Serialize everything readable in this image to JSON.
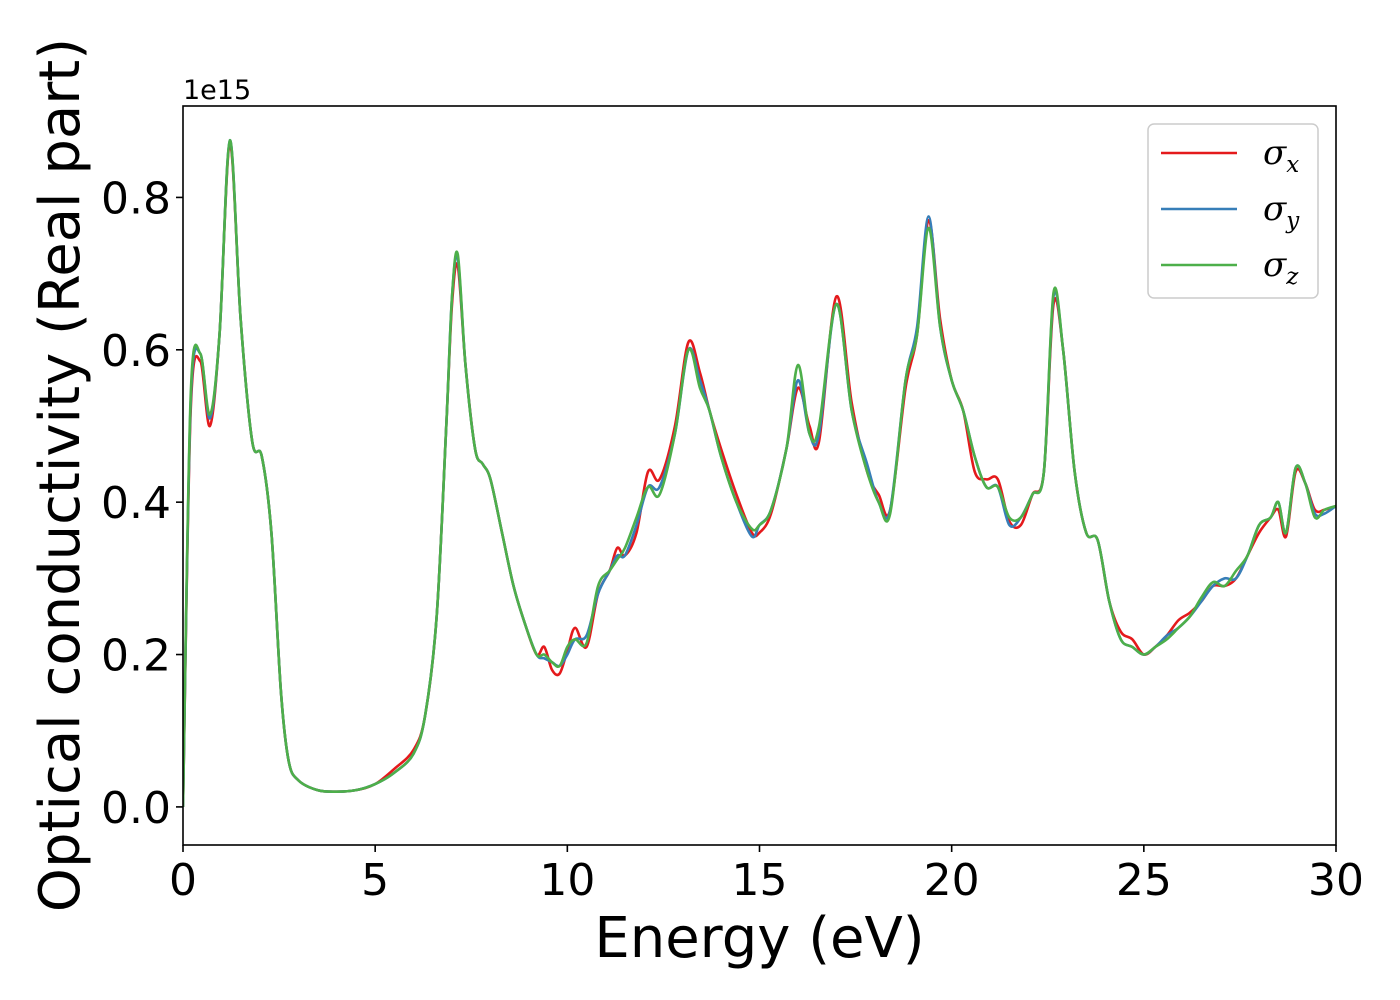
{
  "chart_data": {
    "type": "line",
    "title": "",
    "xlabel": "Energy (eV)",
    "ylabel": "Optical conductivity (Real part)",
    "y_offset_label": "1e15",
    "xlim": [
      0,
      30
    ],
    "ylim": [
      -0.05,
      0.92
    ],
    "xticks": [
      0,
      5,
      10,
      15,
      20,
      25,
      30
    ],
    "yticks": [
      0.0,
      0.2,
      0.4,
      0.6,
      0.8
    ],
    "grid": false,
    "legend_position": "top-right",
    "series": [
      {
        "name": "σx",
        "symbol": "σ",
        "subscript": "x",
        "color": "#e41a1c",
        "x": [
          0,
          0.2,
          0.45,
          0.7,
          0.95,
          1.22,
          1.5,
          1.8,
          2.05,
          2.3,
          2.55,
          2.75,
          3.0,
          3.5,
          4.0,
          4.5,
          5.0,
          5.5,
          6.0,
          6.3,
          6.6,
          6.85,
          7.0,
          7.15,
          7.35,
          7.6,
          7.8,
          8.0,
          8.3,
          8.6,
          8.9,
          9.2,
          9.4,
          9.6,
          9.8,
          10.0,
          10.2,
          10.5,
          10.8,
          11.1,
          11.3,
          11.5,
          11.8,
          12.1,
          12.4,
          12.8,
          13.15,
          13.45,
          13.7,
          14.0,
          14.4,
          14.8,
          15.0,
          15.3,
          15.7,
          16.0,
          16.3,
          16.55,
          17.0,
          17.4,
          17.8,
          18.1,
          18.4,
          18.8,
          19.1,
          19.4,
          19.7,
          20.0,
          20.3,
          20.6,
          20.9,
          21.2,
          21.5,
          21.8,
          22.1,
          22.4,
          22.65,
          22.9,
          23.2,
          23.5,
          23.8,
          24.1,
          24.4,
          24.7,
          25.0,
          25.3,
          25.6,
          25.9,
          26.2,
          26.5,
          26.8,
          27.1,
          27.4,
          27.7,
          28.0,
          28.3,
          28.5,
          28.7,
          28.95,
          29.2,
          29.45,
          29.7,
          30.0
        ],
        "y": [
          0.0,
          0.52,
          0.585,
          0.5,
          0.62,
          0.87,
          0.64,
          0.48,
          0.46,
          0.36,
          0.15,
          0.06,
          0.035,
          0.022,
          0.02,
          0.022,
          0.03,
          0.05,
          0.075,
          0.12,
          0.25,
          0.5,
          0.66,
          0.71,
          0.58,
          0.47,
          0.45,
          0.43,
          0.36,
          0.29,
          0.24,
          0.2,
          0.21,
          0.18,
          0.175,
          0.205,
          0.235,
          0.21,
          0.28,
          0.31,
          0.34,
          0.33,
          0.36,
          0.44,
          0.43,
          0.5,
          0.61,
          0.57,
          0.52,
          0.47,
          0.41,
          0.36,
          0.36,
          0.385,
          0.47,
          0.55,
          0.5,
          0.48,
          0.67,
          0.53,
          0.44,
          0.41,
          0.39,
          0.55,
          0.62,
          0.77,
          0.64,
          0.56,
          0.52,
          0.44,
          0.43,
          0.43,
          0.375,
          0.37,
          0.41,
          0.44,
          0.66,
          0.6,
          0.44,
          0.36,
          0.35,
          0.27,
          0.23,
          0.22,
          0.2,
          0.21,
          0.225,
          0.245,
          0.255,
          0.27,
          0.29,
          0.29,
          0.3,
          0.33,
          0.36,
          0.38,
          0.39,
          0.355,
          0.44,
          0.425,
          0.39,
          0.39,
          0.395
        ]
      },
      {
        "name": "σy",
        "symbol": "σ",
        "subscript": "y",
        "color": "#377eb8",
        "x": [
          0,
          0.2,
          0.45,
          0.7,
          0.95,
          1.22,
          1.5,
          1.8,
          2.05,
          2.3,
          2.55,
          2.75,
          3.0,
          3.5,
          4.0,
          4.5,
          5.0,
          5.5,
          6.0,
          6.3,
          6.6,
          6.85,
          7.0,
          7.15,
          7.35,
          7.6,
          7.8,
          8.0,
          8.3,
          8.6,
          8.9,
          9.2,
          9.4,
          9.6,
          9.8,
          10.0,
          10.2,
          10.5,
          10.8,
          11.1,
          11.3,
          11.5,
          11.8,
          12.1,
          12.4,
          12.8,
          13.15,
          13.45,
          13.7,
          14.0,
          14.4,
          14.8,
          15.0,
          15.3,
          15.7,
          16.0,
          16.3,
          16.55,
          17.0,
          17.4,
          17.8,
          18.1,
          18.4,
          18.8,
          19.1,
          19.4,
          19.7,
          20.0,
          20.3,
          20.6,
          20.9,
          21.2,
          21.5,
          21.8,
          22.1,
          22.4,
          22.65,
          22.9,
          23.2,
          23.5,
          23.8,
          24.1,
          24.4,
          24.7,
          25.0,
          25.3,
          25.6,
          25.9,
          26.2,
          26.5,
          26.8,
          27.1,
          27.4,
          27.7,
          28.0,
          28.3,
          28.5,
          28.7,
          28.95,
          29.2,
          29.45,
          29.7,
          30.0
        ],
        "y": [
          0.0,
          0.53,
          0.595,
          0.51,
          0.62,
          0.875,
          0.64,
          0.48,
          0.46,
          0.36,
          0.15,
          0.06,
          0.035,
          0.022,
          0.02,
          0.022,
          0.03,
          0.045,
          0.07,
          0.12,
          0.25,
          0.5,
          0.67,
          0.72,
          0.58,
          0.47,
          0.45,
          0.43,
          0.36,
          0.29,
          0.24,
          0.2,
          0.195,
          0.19,
          0.185,
          0.2,
          0.22,
          0.225,
          0.28,
          0.31,
          0.33,
          0.33,
          0.37,
          0.42,
          0.42,
          0.49,
          0.6,
          0.56,
          0.52,
          0.46,
          0.4,
          0.355,
          0.37,
          0.39,
          0.47,
          0.56,
          0.49,
          0.49,
          0.66,
          0.52,
          0.45,
          0.4,
          0.39,
          0.56,
          0.63,
          0.775,
          0.63,
          0.56,
          0.52,
          0.46,
          0.42,
          0.42,
          0.37,
          0.38,
          0.41,
          0.44,
          0.67,
          0.6,
          0.44,
          0.36,
          0.35,
          0.27,
          0.22,
          0.21,
          0.2,
          0.21,
          0.225,
          0.235,
          0.25,
          0.27,
          0.29,
          0.3,
          0.3,
          0.33,
          0.37,
          0.38,
          0.4,
          0.36,
          0.445,
          0.425,
          0.385,
          0.385,
          0.395
        ]
      },
      {
        "name": "σz",
        "symbol": "σ",
        "subscript": "z",
        "color": "#4daf4a",
        "x": [
          0,
          0.2,
          0.45,
          0.7,
          0.95,
          1.22,
          1.5,
          1.8,
          2.05,
          2.3,
          2.55,
          2.75,
          3.0,
          3.5,
          4.0,
          4.5,
          5.0,
          5.5,
          6.0,
          6.3,
          6.6,
          6.85,
          7.0,
          7.15,
          7.35,
          7.6,
          7.8,
          8.0,
          8.3,
          8.6,
          8.9,
          9.2,
          9.4,
          9.6,
          9.8,
          10.0,
          10.2,
          10.5,
          10.8,
          11.1,
          11.3,
          11.5,
          11.8,
          12.1,
          12.4,
          12.8,
          13.15,
          13.45,
          13.7,
          14.0,
          14.4,
          14.8,
          15.0,
          15.3,
          15.7,
          16.0,
          16.3,
          16.55,
          17.0,
          17.4,
          17.8,
          18.1,
          18.4,
          18.8,
          19.1,
          19.4,
          19.7,
          20.0,
          20.3,
          20.6,
          20.9,
          21.2,
          21.5,
          21.8,
          22.1,
          22.4,
          22.65,
          22.9,
          23.2,
          23.5,
          23.8,
          24.1,
          24.4,
          24.7,
          25.0,
          25.3,
          25.6,
          25.9,
          26.2,
          26.5,
          26.8,
          27.1,
          27.4,
          27.7,
          28.0,
          28.3,
          28.5,
          28.7,
          28.95,
          29.2,
          29.45,
          29.7,
          30.0
        ],
        "y": [
          0.0,
          0.54,
          0.595,
          0.515,
          0.62,
          0.875,
          0.64,
          0.48,
          0.46,
          0.36,
          0.15,
          0.06,
          0.035,
          0.022,
          0.02,
          0.022,
          0.03,
          0.045,
          0.07,
          0.12,
          0.25,
          0.5,
          0.67,
          0.725,
          0.58,
          0.47,
          0.45,
          0.43,
          0.36,
          0.29,
          0.24,
          0.2,
          0.2,
          0.19,
          0.185,
          0.21,
          0.22,
          0.215,
          0.29,
          0.31,
          0.325,
          0.34,
          0.38,
          0.42,
          0.41,
          0.49,
          0.6,
          0.55,
          0.52,
          0.46,
          0.4,
          0.365,
          0.37,
          0.39,
          0.47,
          0.58,
          0.49,
          0.5,
          0.66,
          0.52,
          0.44,
          0.4,
          0.385,
          0.56,
          0.62,
          0.76,
          0.63,
          0.56,
          0.52,
          0.46,
          0.42,
          0.42,
          0.38,
          0.38,
          0.41,
          0.44,
          0.675,
          0.6,
          0.44,
          0.36,
          0.35,
          0.27,
          0.22,
          0.21,
          0.2,
          0.21,
          0.22,
          0.235,
          0.25,
          0.275,
          0.295,
          0.29,
          0.31,
          0.33,
          0.37,
          0.38,
          0.4,
          0.36,
          0.445,
          0.425,
          0.38,
          0.39,
          0.395
        ]
      }
    ]
  }
}
